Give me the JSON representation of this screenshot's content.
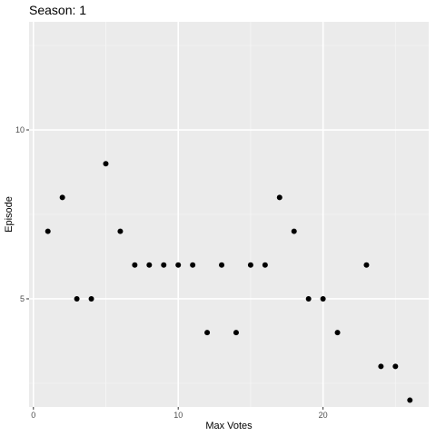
{
  "chart_data": {
    "type": "scatter",
    "title": "Season: 1",
    "xlabel": "Max Votes",
    "ylabel": "Episode",
    "xlim": [
      -0.3,
      27.3
    ],
    "ylim": [
      1.8,
      13.2
    ],
    "x_ticks": [
      0,
      10,
      20
    ],
    "y_ticks": [
      5,
      10
    ],
    "x_minor": [
      5,
      15,
      25
    ],
    "y_minor": [
      2.5,
      7.5,
      12.5
    ],
    "grid": true,
    "panel_color": "#ebebeb",
    "point_color": "#000000",
    "points": [
      {
        "x": 1,
        "y": 7
      },
      {
        "x": 2,
        "y": 8
      },
      {
        "x": 3,
        "y": 5
      },
      {
        "x": 4,
        "y": 5
      },
      {
        "x": 5,
        "y": 9
      },
      {
        "x": 6,
        "y": 7
      },
      {
        "x": 7,
        "y": 6
      },
      {
        "x": 8,
        "y": 6
      },
      {
        "x": 9,
        "y": 6
      },
      {
        "x": 10,
        "y": 6
      },
      {
        "x": 11,
        "y": 6
      },
      {
        "x": 12,
        "y": 4
      },
      {
        "x": 13,
        "y": 6
      },
      {
        "x": 14,
        "y": 4
      },
      {
        "x": 15,
        "y": 6
      },
      {
        "x": 16,
        "y": 6
      },
      {
        "x": 17,
        "y": 8
      },
      {
        "x": 18,
        "y": 7
      },
      {
        "x": 19,
        "y": 5
      },
      {
        "x": 20,
        "y": 5
      },
      {
        "x": 21,
        "y": 4
      },
      {
        "x": 23,
        "y": 6
      },
      {
        "x": 24,
        "y": 3
      },
      {
        "x": 25,
        "y": 3
      },
      {
        "x": 26,
        "y": 2
      }
    ]
  }
}
